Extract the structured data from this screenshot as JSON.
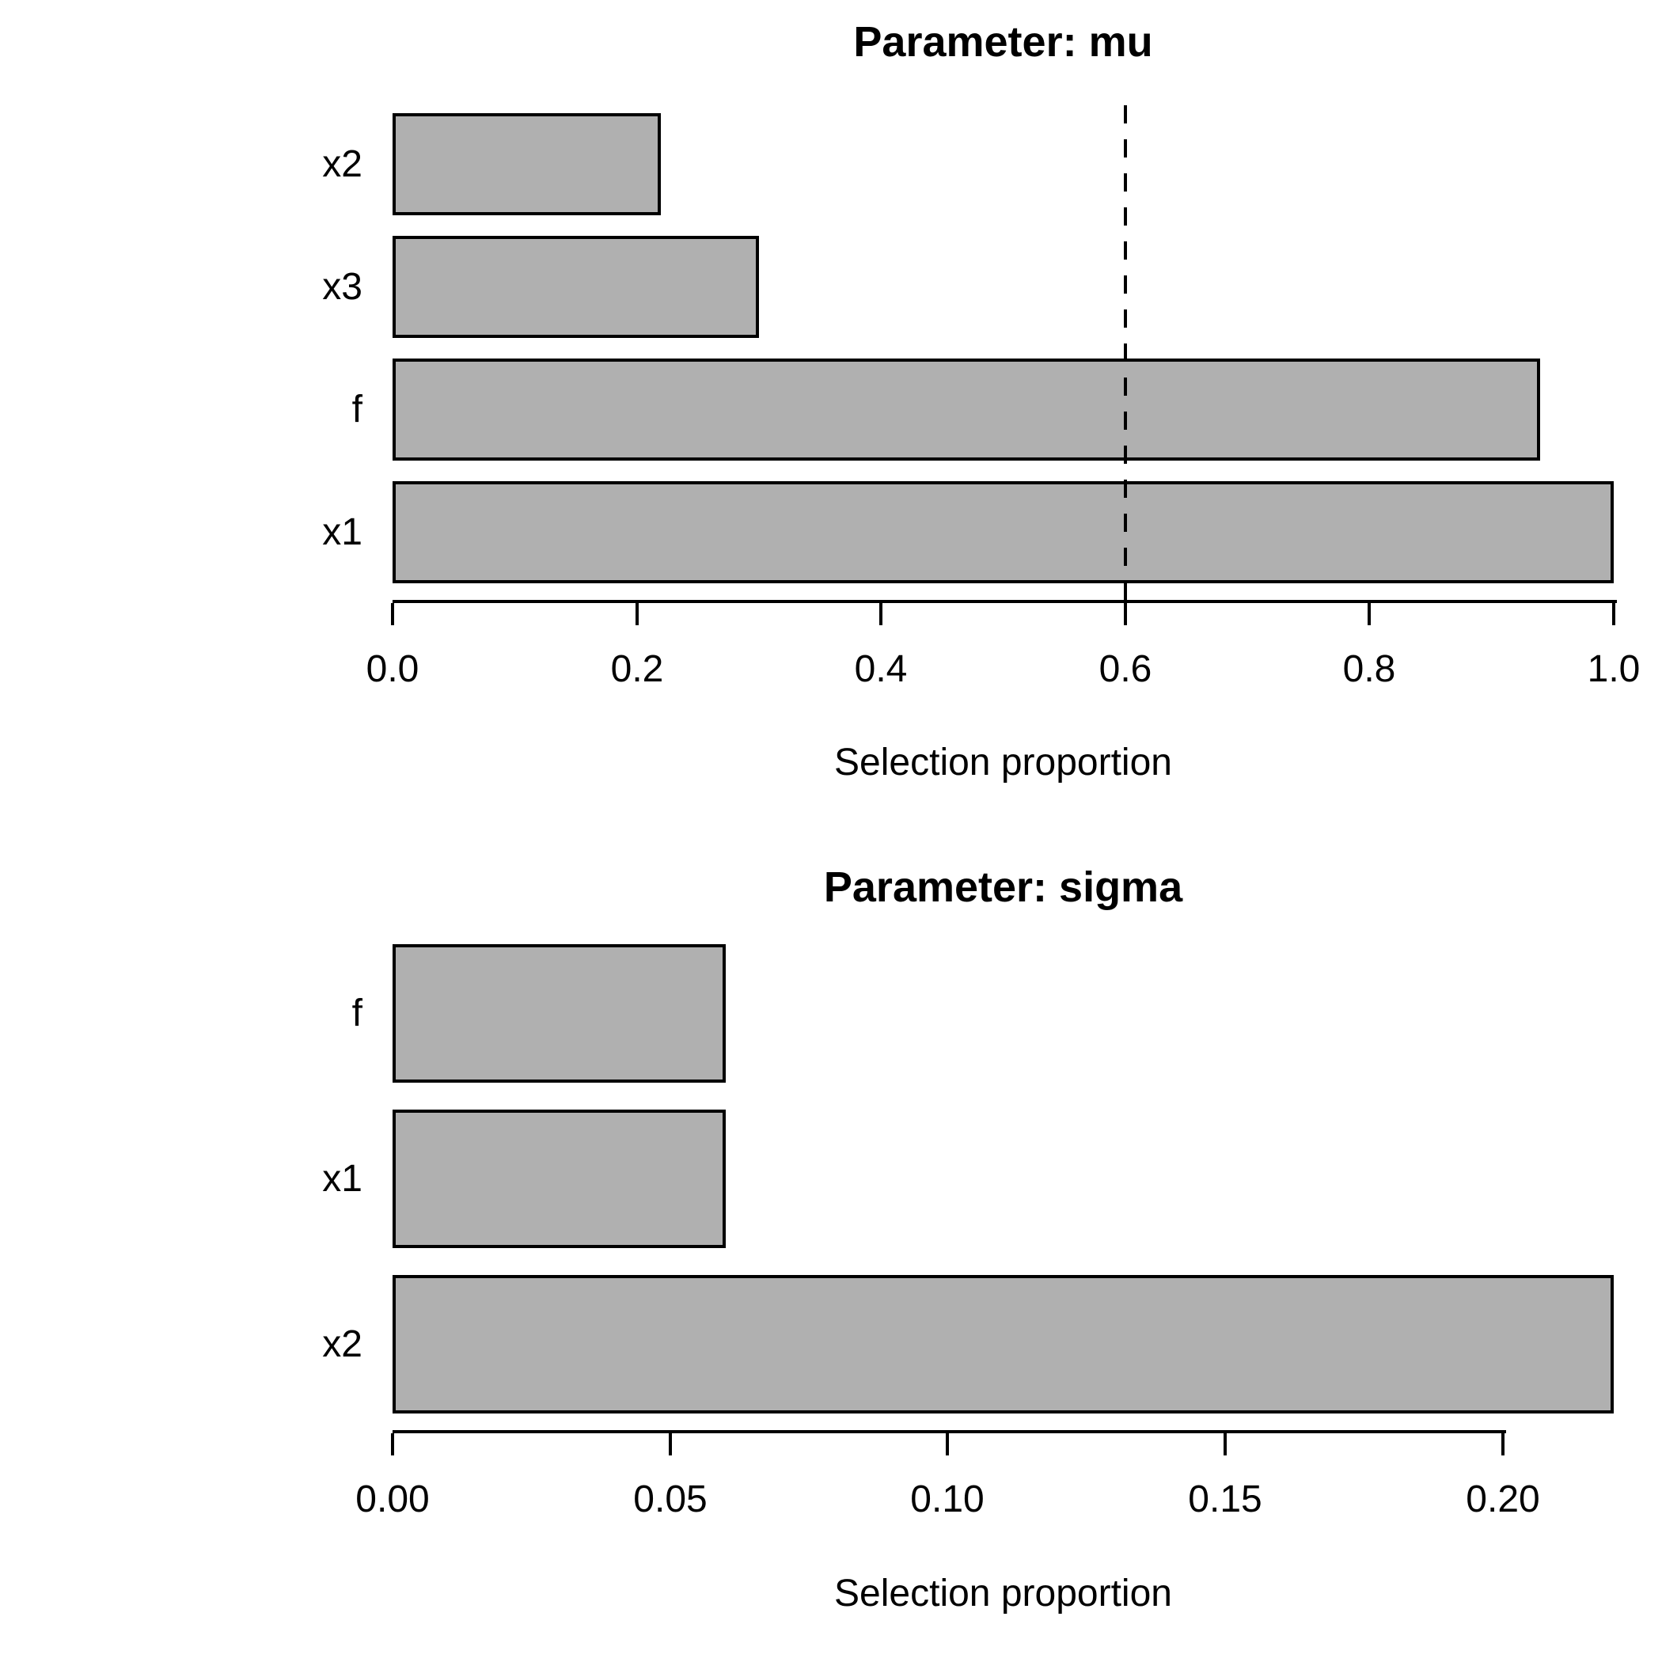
{
  "figure": {
    "background_color": "#ffffff",
    "text_color": "#000000"
  },
  "chart_data": [
    {
      "type": "bar",
      "orientation": "horizontal",
      "title": "Parameter: mu",
      "xlabel": "Selection proportion",
      "categories": [
        "x2",
        "x3",
        "f",
        "x1"
      ],
      "values": [
        0.22,
        0.3,
        0.94,
        1.0
      ],
      "xlim": [
        0,
        1.0
      ],
      "xticks": [
        0,
        0.2,
        0.4,
        0.6,
        0.8,
        1.0
      ],
      "xtick_labels": [
        "0.0",
        "0.2",
        "0.4",
        "0.6",
        "0.8",
        "1.0"
      ],
      "reference_line_x": 0.6,
      "reference_line_style": "dashed",
      "bar_fill": "#b0b0b0",
      "bar_border": "#000000",
      "grid": false,
      "legend": false
    },
    {
      "type": "bar",
      "orientation": "horizontal",
      "title": "Parameter: sigma",
      "xlabel": "Selection proportion",
      "categories": [
        "f",
        "x1",
        "x2"
      ],
      "values": [
        0.06,
        0.06,
        0.22
      ],
      "xlim": [
        0,
        0.22
      ],
      "xticks": [
        0,
        0.05,
        0.1,
        0.15,
        0.2
      ],
      "xtick_labels": [
        "0.00",
        "0.05",
        "0.10",
        "0.15",
        "0.20"
      ],
      "reference_line_x": null,
      "reference_line_style": null,
      "bar_fill": "#b0b0b0",
      "bar_border": "#000000",
      "grid": false,
      "legend": false
    }
  ]
}
